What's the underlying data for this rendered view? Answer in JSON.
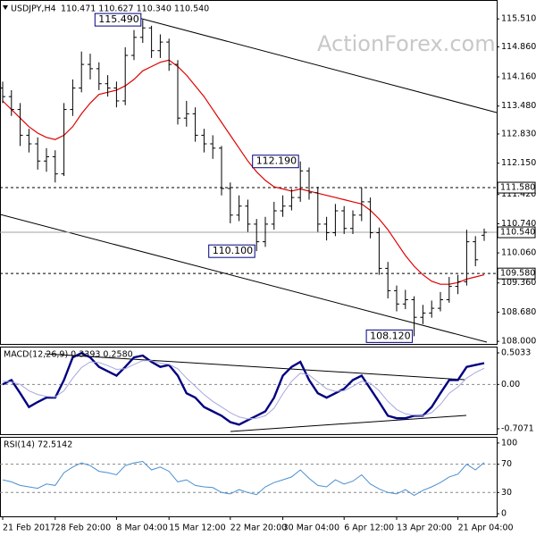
{
  "chart_data": [
    {
      "type": "ohlc",
      "title": "USDJPY,H4",
      "subtitle": "110.471 110.627 110.340 110.540",
      "watermark": "ActionForex.com",
      "x": [
        "21 Feb 2017",
        null,
        null,
        null,
        null,
        null,
        "28 Feb 20:00",
        null,
        null,
        null,
        null,
        null,
        null,
        "8 Mar 04:00",
        null,
        null,
        null,
        null,
        null,
        "15 Mar 12:00",
        null,
        null,
        null,
        null,
        null,
        null,
        "22 Mar 20:00",
        null,
        null,
        null,
        null,
        null,
        "30 Mar 04:00",
        null,
        null,
        null,
        null,
        null,
        null,
        "6 Apr 12:00",
        null,
        null,
        null,
        null,
        null,
        "13 Apr 20:00",
        null,
        null,
        null,
        null,
        null,
        null,
        "21 Apr 04:00",
        null,
        null,
        null
      ],
      "open": [
        113.9,
        113.7,
        113.4,
        112.8,
        112.6,
        112.2,
        112.3,
        111.9,
        113.4,
        113.9,
        114.45,
        114.35,
        114.0,
        113.9,
        113.6,
        114.66,
        115.08,
        115.3,
        114.77,
        114.97,
        114.45,
        113.2,
        113.3,
        112.8,
        112.6,
        112.5,
        111.56,
        110.94,
        111.15,
        110.73,
        110.32,
        110.73,
        111.04,
        111.15,
        111.35,
        111.97,
        111.46,
        110.73,
        110.53,
        111.04,
        110.63,
        110.94,
        111.25,
        110.53,
        109.7,
        109.18,
        108.87,
        108.97,
        108.56,
        108.66,
        108.77,
        108.97,
        109.28,
        109.39,
        110.32,
        110.471
      ],
      "high": [
        114.05,
        113.85,
        113.55,
        112.95,
        112.75,
        112.5,
        112.45,
        113.55,
        114.1,
        114.75,
        114.7,
        114.5,
        114.2,
        114.05,
        114.85,
        115.25,
        115.49,
        115.35,
        115.15,
        115.05,
        114.55,
        113.6,
        113.45,
        112.95,
        112.8,
        112.55,
        111.7,
        111.4,
        111.3,
        110.85,
        110.9,
        111.25,
        111.4,
        111.55,
        112.19,
        112.05,
        111.6,
        110.9,
        111.2,
        111.15,
        111.05,
        111.58,
        111.35,
        110.65,
        109.85,
        109.3,
        109.2,
        109.05,
        108.85,
        108.95,
        109.15,
        109.5,
        109.55,
        110.6,
        110.45,
        110.627
      ],
      "low": [
        113.55,
        113.25,
        112.55,
        112.4,
        112.0,
        111.95,
        111.7,
        111.85,
        113.25,
        113.8,
        114.1,
        113.85,
        113.7,
        113.45,
        113.5,
        114.55,
        114.95,
        114.6,
        114.6,
        114.3,
        113.05,
        113.0,
        112.65,
        112.4,
        112.25,
        111.4,
        110.75,
        110.8,
        110.55,
        110.1,
        110.2,
        110.6,
        110.9,
        111.05,
        111.25,
        111.3,
        110.55,
        110.35,
        110.45,
        110.5,
        110.5,
        110.8,
        110.4,
        109.55,
        109.0,
        108.7,
        108.75,
        108.12,
        108.4,
        108.55,
        108.7,
        108.9,
        109.1,
        109.3,
        109.75,
        110.34
      ],
      "close": [
        113.7,
        113.4,
        112.8,
        112.6,
        112.2,
        112.3,
        111.9,
        113.4,
        113.9,
        114.45,
        114.35,
        114.0,
        113.9,
        113.6,
        114.66,
        115.08,
        115.3,
        114.77,
        114.97,
        114.45,
        113.2,
        113.3,
        112.8,
        112.6,
        112.5,
        111.56,
        110.94,
        111.15,
        110.73,
        110.32,
        110.73,
        111.04,
        111.15,
        111.35,
        111.97,
        111.46,
        110.73,
        110.53,
        111.04,
        110.63,
        110.94,
        111.25,
        110.53,
        109.7,
        109.18,
        108.87,
        108.97,
        108.56,
        108.66,
        108.77,
        108.97,
        109.28,
        109.39,
        110.32,
        109.9,
        110.54
      ],
      "color": "#000000",
      "overlays": [
        {
          "color": "#e00000",
          "values": [
            113.6,
            113.4,
            113.2,
            113.0,
            112.85,
            112.75,
            112.7,
            112.8,
            113.0,
            113.3,
            113.55,
            113.75,
            113.8,
            113.85,
            113.95,
            114.1,
            114.3,
            114.4,
            114.5,
            114.55,
            114.4,
            114.2,
            113.95,
            113.7,
            113.4,
            113.1,
            112.8,
            112.5,
            112.2,
            111.95,
            111.75,
            111.6,
            111.55,
            111.5,
            111.55,
            111.5,
            111.45,
            111.4,
            111.35,
            111.3,
            111.25,
            111.2,
            111.05,
            110.85,
            110.6,
            110.3,
            110.0,
            109.75,
            109.55,
            109.4,
            109.33,
            109.33,
            109.37,
            109.45,
            109.5,
            109.55
          ]
        }
      ],
      "levels": [
        {
          "value": 111.58,
          "label": "111.580",
          "style": "dash",
          "color": "#000000"
        },
        {
          "value": 110.54,
          "label": "110.540",
          "style": "solid",
          "color": "#a0a0a0"
        },
        {
          "value": 109.58,
          "label": "109.580",
          "style": "dash",
          "color": "#000000"
        }
      ],
      "annotations": [
        {
          "value": 115.49,
          "label": "115.490"
        },
        {
          "value": 112.19,
          "label": "112.190"
        },
        {
          "value": 110.1,
          "label": "110.100"
        },
        {
          "value": 108.12,
          "label": "108.120"
        }
      ],
      "ylim": [
        107.94,
        115.95
      ],
      "yticks": [
        {
          "value": 115.51,
          "label": "115.510"
        },
        {
          "value": 114.86,
          "label": "114.860"
        },
        {
          "value": 114.16,
          "label": "114.160"
        },
        {
          "value": 113.48,
          "label": "113.480"
        },
        {
          "value": 112.83,
          "label": "112.830"
        },
        {
          "value": 112.15,
          "label": "112.150"
        },
        {
          "value": 111.42,
          "label": "111.420"
        },
        {
          "value": 110.74,
          "label": "110.740"
        },
        {
          "value": 110.06,
          "label": "110.060"
        },
        {
          "value": 109.36,
          "label": "109.360"
        },
        {
          "value": 108.68,
          "label": "108.680"
        },
        {
          "value": 108,
          "label": "108.000"
        }
      ]
    },
    {
      "type": "line",
      "title": "MACD(12,26,9) 0.3393 0.2580",
      "series": [
        {
          "color": "#000080",
          "values": [
            0.0,
            0.07,
            -0.14,
            -0.36,
            -0.28,
            -0.21,
            -0.21,
            0.07,
            0.43,
            0.5,
            0.43,
            0.28,
            0.21,
            0.14,
            0.28,
            0.43,
            0.46,
            0.36,
            0.28,
            0.31,
            0.14,
            -0.14,
            -0.21,
            -0.36,
            -0.43,
            -0.5,
            -0.6,
            -0.64,
            -0.57,
            -0.5,
            -0.43,
            -0.21,
            0.14,
            0.28,
            0.36,
            0.07,
            -0.14,
            -0.21,
            -0.14,
            -0.07,
            0.07,
            0.14,
            -0.07,
            -0.28,
            -0.5,
            -0.54,
            -0.54,
            -0.5,
            -0.5,
            -0.36,
            -0.14,
            0.07,
            0.07,
            0.28,
            0.31,
            0.3393
          ]
        },
        {
          "color": "#a8a8e0",
          "values": [
            0.05,
            0.04,
            0.0,
            -0.1,
            -0.16,
            -0.19,
            -0.2,
            -0.1,
            0.1,
            0.27,
            0.36,
            0.35,
            0.3,
            0.24,
            0.25,
            0.32,
            0.38,
            0.38,
            0.34,
            0.32,
            0.25,
            0.1,
            -0.03,
            -0.16,
            -0.27,
            -0.36,
            -0.45,
            -0.52,
            -0.55,
            -0.54,
            -0.5,
            -0.38,
            -0.15,
            0.05,
            0.18,
            0.15,
            0.04,
            -0.07,
            -0.11,
            -0.1,
            -0.03,
            0.05,
            0.02,
            -0.1,
            -0.27,
            -0.4,
            -0.47,
            -0.49,
            -0.5,
            -0.45,
            -0.32,
            -0.14,
            -0.04,
            0.1,
            0.19,
            0.258
          ]
        }
      ],
      "levels": [
        0
      ],
      "ylim": [
        -0.793,
        0.603
      ],
      "yticks": [
        0.5033,
        {
          "value": 0,
          "label": "0.00"
        },
        -0.7071
      ]
    },
    {
      "type": "line",
      "title": "RSI(14) 72.5142",
      "series": [
        {
          "color": "#4a8fd0",
          "values": [
            48,
            45,
            40,
            38,
            36,
            42,
            40,
            58,
            66,
            72,
            68,
            60,
            58,
            55,
            68,
            72,
            74,
            62,
            66,
            60,
            45,
            48,
            40,
            38,
            37,
            30,
            28,
            34,
            30,
            27,
            38,
            44,
            48,
            52,
            62,
            50,
            40,
            38,
            48,
            42,
            46,
            55,
            42,
            35,
            30,
            28,
            34,
            26,
            33,
            38,
            44,
            52,
            56,
            70,
            62,
            72.5142
          ]
        }
      ],
      "levels": [
        70,
        30
      ],
      "ylim": [
        -3.75,
        108.75
      ],
      "yticks": [
        100,
        70,
        30,
        0
      ]
    }
  ]
}
